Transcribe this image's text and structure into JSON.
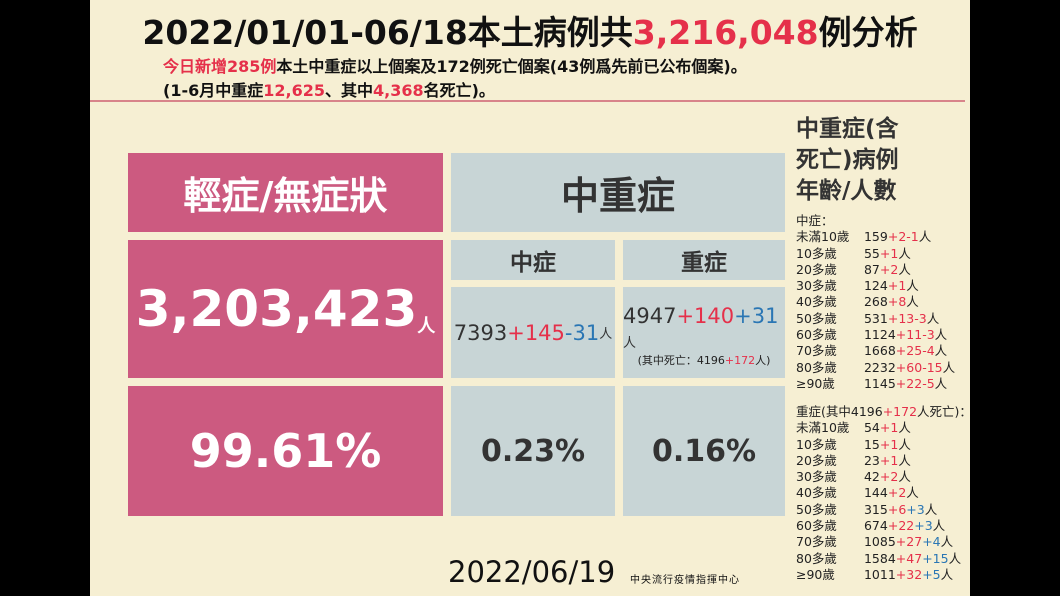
{
  "header": {
    "title": [
      "2022/01/01-06/18本土病例共",
      "3,216,048",
      "例分析"
    ],
    "line1": [
      "今日新增285例",
      "本土中重症以上個案及172例死亡個案(43例爲先前已公布個案)。"
    ],
    "line2": [
      "(1-6月中重症",
      "12,625",
      "、其中",
      "4,368",
      "名死亡)。"
    ]
  },
  "table": {
    "mild_header": "輕症/無症狀",
    "severe_header": "中重症",
    "moderate": "中症",
    "severe": "重症",
    "mild_count": [
      "3,203,423",
      "人"
    ],
    "moderate_count": [
      "7393",
      "+145",
      "-31",
      "人"
    ],
    "severe_count": [
      "4947",
      "+140",
      "+31",
      "人"
    ],
    "severe_deaths": [
      "(其中死亡：4196",
      "+172",
      "人)"
    ],
    "mild_pct": "99.61%",
    "moderate_pct": "0.23%",
    "severe_pct": "0.16%"
  },
  "sidebar": {
    "title": [
      "中重症(含",
      "死亡)病例",
      "年齡/人數"
    ],
    "moderate": {
      "heading": [
        "中症："
      ],
      "rows": [
        [
          "未滿10歲",
          "159",
          "+2",
          "-1",
          "人"
        ],
        [
          "10多歲",
          "55",
          "+1",
          "人"
        ],
        [
          "20多歲",
          "87",
          "+2",
          "人"
        ],
        [
          "30多歲",
          "124",
          "+1",
          "人"
        ],
        [
          "40多歲",
          "268",
          "+8",
          "人"
        ],
        [
          "50多歲",
          "531",
          "+13",
          "-3",
          "人"
        ],
        [
          "60多歲",
          "1124",
          "+11",
          "-3",
          "人"
        ],
        [
          "70多歲",
          "1668",
          "+25",
          "-4",
          "人"
        ],
        [
          "80多歲",
          "2232",
          "+60",
          "-15",
          "人"
        ],
        [
          "≥90歲",
          "1145",
          "+22",
          "-5",
          "人"
        ]
      ]
    },
    "severe": {
      "heading": [
        "重症(其中4196",
        "+172",
        "人死亡)："
      ],
      "rows": [
        [
          "未滿10歲",
          "54",
          "+1",
          "人"
        ],
        [
          "10多歲",
          "15",
          "+1",
          "人"
        ],
        [
          "20多歲",
          "23",
          "+1",
          "人"
        ],
        [
          "30多歲",
          "42",
          "+2",
          "人"
        ],
        [
          "40多歲",
          "144",
          "+2",
          "人"
        ],
        [
          "50多歲",
          "315",
          "+6",
          "+3",
          "人"
        ],
        [
          "60多歲",
          "674",
          "+22",
          "+3",
          "人"
        ],
        [
          "70多歲",
          "1085",
          "+27",
          "+4",
          "人"
        ],
        [
          "80多歲",
          "1584",
          "+47",
          "+15",
          "人"
        ],
        [
          "≥90歲",
          "1011",
          "+32",
          "+5",
          "人"
        ]
      ]
    }
  },
  "footer": {
    "date": "2022/06/19",
    "org": "中央流行疫情指揮中心"
  }
}
